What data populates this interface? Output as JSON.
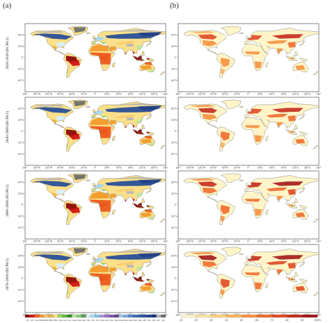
{
  "panels": {
    "a": {
      "label": "(a)"
    },
    "b": {
      "label": "(b)"
    }
  },
  "rows": [
    {
      "label": "2020-2049 (RCP8.5)"
    },
    {
      "label": "2040-2069 (RCP8.5)"
    },
    {
      "label": "2060-2089 (RCP8.5)"
    },
    {
      "label": "2070-2099 (RCP8.5)"
    }
  ],
  "axes": {
    "lat_ticks": [
      "60°N",
      "30°N",
      "0°",
      "30°S",
      "60°S"
    ],
    "lon_ticks": [
      "180°",
      "150°W",
      "120°W",
      "90°W",
      "60°W",
      "30°W",
      "0°",
      "30°E",
      "60°E",
      "90°E",
      "120°E",
      "150°E",
      "180°"
    ]
  },
  "legend_a": {
    "classes": [
      "Af",
      "Am",
      "Aw",
      "BWh",
      "BWk",
      "BSh",
      "BSk",
      "Csa",
      "Csb",
      "Csc",
      "Cwa",
      "Cwb",
      "Cwc",
      "Cfa",
      "Cfb",
      "Cfc",
      "Dsa",
      "Dsb",
      "Dsc",
      "Dsd",
      "Dwa",
      "Dwb",
      "Dwc",
      "Dwd",
      "Dfa",
      "Dfb",
      "Dfc",
      "Dfd",
      "ET",
      "EF"
    ],
    "colors": [
      "#8c0a0a",
      "#d21414",
      "#ee5a1e",
      "#f39a2a",
      "#f7c76c",
      "#f5b440",
      "#fbe08a",
      "#8fe04a",
      "#58b83a",
      "#2e8b2e",
      "#bfe8a0",
      "#8acb78",
      "#5aa35a",
      "#d6f0ff",
      "#a7d9f2",
      "#7cc1e8",
      "#b58fd6",
      "#9b6fc4",
      "#7e57ad",
      "#633f8f",
      "#9fc6ee",
      "#78a8e0",
      "#5588cc",
      "#3a6bb5",
      "#2e5da8",
      "#2a4f98",
      "#22418a",
      "#1a327a",
      "#b4b4b4",
      "#6e6e6e"
    ]
  },
  "legend_b": {
    "ticks": [
      "10",
      "20",
      "30",
      "40",
      "50",
      "60",
      "70",
      "80",
      "90",
      "100%"
    ],
    "colors": [
      "#fff5c8",
      "#fde6a0",
      "#fcd07c",
      "#fbb45a",
      "#f7913f",
      "#ef6c2e",
      "#e04a24",
      "#c52d1e",
      "#a51818"
    ]
  },
  "colors": {
    "ocean": "#ffffff",
    "coast": "#555555",
    "frame": "#333333"
  }
}
